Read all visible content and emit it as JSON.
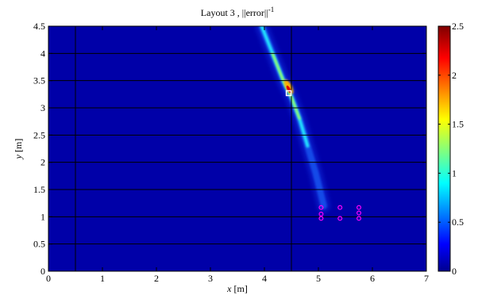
{
  "chart_data": {
    "type": "heatmap",
    "title": "Layout 3 , ||error||",
    "title_sup": "-1",
    "xlabel_var": "x",
    "xlabel_unit": " [m]",
    "ylabel_var": "y",
    "ylabel_unit": " [m]",
    "xlim": [
      0,
      7
    ],
    "ylim": [
      0,
      4.5
    ],
    "xticks": [
      "0",
      "1",
      "2",
      "3",
      "4",
      "5",
      "6",
      "7"
    ],
    "yticks": [
      "0",
      "0.5",
      "1",
      "1.5",
      "2",
      "2.5",
      "3",
      "3.5",
      "4",
      "4.5"
    ],
    "colorbar": {
      "range": [
        0,
        2.5
      ],
      "ticks": [
        "0",
        "0.5",
        "1",
        "1.5",
        "2",
        "2.5"
      ],
      "colormap": "jet"
    },
    "grid_lines_x": [
      0.5,
      4.5
    ],
    "grid_lines_y": [
      0.5,
      1,
      1.5,
      2,
      2.5,
      3,
      3.5,
      4
    ],
    "ridge": {
      "description": "",
      "points": [
        [
          3.95,
          4.5
        ],
        [
          4.15,
          4.0
        ],
        [
          4.35,
          3.5
        ],
        [
          4.5,
          3.2
        ],
        [
          4.65,
          2.8
        ],
        [
          4.8,
          2.3
        ],
        [
          4.95,
          1.8
        ],
        [
          5.1,
          1.2
        ]
      ],
      "peak": [
        4.45,
        3.3
      ]
    },
    "estimated_source": {
      "x": 4.45,
      "y": 3.27,
      "marker": "square",
      "color": "#ffffff"
    },
    "microphones": {
      "marker": "circle",
      "color": "#ff00ff",
      "points": [
        [
          5.05,
          1.17
        ],
        [
          5.05,
          1.05
        ],
        [
          5.05,
          0.97
        ],
        [
          5.4,
          1.17
        ],
        [
          5.4,
          0.97
        ],
        [
          5.75,
          1.17
        ],
        [
          5.75,
          1.07
        ],
        [
          5.75,
          0.97
        ]
      ]
    },
    "background_color": "#0000a8",
    "legend": "none"
  }
}
